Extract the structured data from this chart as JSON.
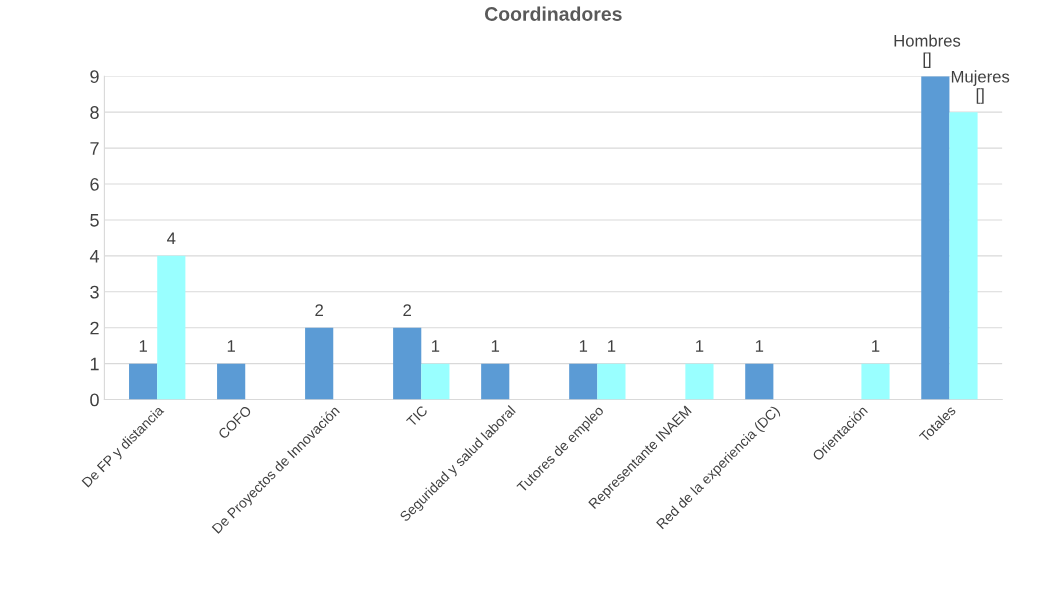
{
  "chart_data": {
    "type": "bar",
    "title": "Coordinadores",
    "categories": [
      "De FP y distancia",
      "COFO",
      "De Proyectos de Innovación",
      "TIC",
      "Seguridad y salud laboral",
      "Tutores de empleo",
      "Representante INAEM",
      "Red de la experiencia (DC)",
      "Orientación",
      "Totales"
    ],
    "series": [
      {
        "color": "#5b9bd5",
        "values": [
          1,
          1,
          2,
          2,
          1,
          1,
          null,
          1,
          null,
          9
        ],
        "value_labels": [
          "1",
          "1",
          "2",
          "2",
          "1",
          "1",
          null,
          "1",
          null,
          "Hombres\n[]"
        ]
      },
      {
        "color": "#99ffff",
        "values": [
          4,
          null,
          null,
          1,
          null,
          1,
          1,
          null,
          1,
          8
        ],
        "value_labels": [
          "4",
          null,
          null,
          "1",
          null,
          "1",
          "1",
          null,
          "1",
          "Mujeres\n[]"
        ]
      }
    ],
    "ylim": [
      0,
      9
    ],
    "yticks": [
      0,
      1,
      2,
      3,
      4,
      5,
      6,
      7,
      8,
      9
    ],
    "grid": "y"
  }
}
